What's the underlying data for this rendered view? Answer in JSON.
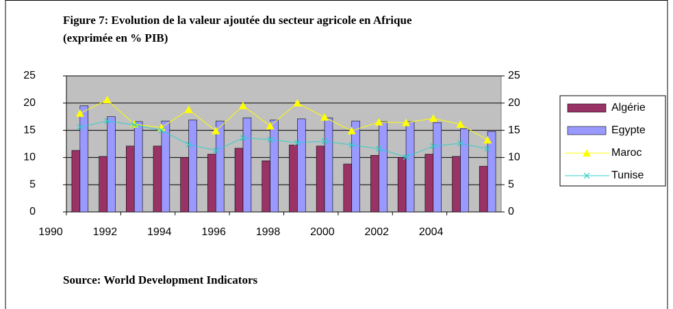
{
  "chart_data": {
    "type": "bar-line",
    "title": "Figure 7: Evolution de la valeur ajoutée du secteur agricole en Afrique (exprimée en % PIB)",
    "source": "Source: World Development Indicators",
    "x": [
      1991,
      1992,
      1993,
      1994,
      1995,
      1996,
      1997,
      1998,
      1999,
      2000,
      2001,
      2002,
      2003,
      2004,
      2005,
      2006
    ],
    "xlim": [
      1990,
      2006
    ],
    "xticks": [
      1990,
      1992,
      1994,
      1996,
      1998,
      2000,
      2002,
      2004
    ],
    "ylim": [
      0,
      25
    ],
    "yticks": [
      0,
      5,
      10,
      15,
      20,
      25
    ],
    "y2lim": [
      0,
      25
    ],
    "y2ticks": [
      0,
      5,
      10,
      15,
      20,
      25
    ],
    "grid": true,
    "legend": "right",
    "series": [
      {
        "name": "Algérie",
        "kind": "bar",
        "color": "#993366",
        "values": [
          11.3,
          10.2,
          12.1,
          12.1,
          10.0,
          10.6,
          11.7,
          9.4,
          12.3,
          12.1,
          8.8,
          10.4,
          10.0,
          10.6,
          10.2,
          8.4
        ]
      },
      {
        "name": "Egypte",
        "kind": "bar",
        "color": "#9999ff",
        "values": [
          19.5,
          17.5,
          16.6,
          16.7,
          16.9,
          16.7,
          17.3,
          16.9,
          17.1,
          17.3,
          16.7,
          16.6,
          16.6,
          16.4,
          15.3,
          14.8
        ]
      },
      {
        "name": "Maroc",
        "kind": "line",
        "marker": "triangle",
        "color": "#ffff00",
        "values": [
          18.1,
          20.6,
          16.1,
          15.5,
          18.8,
          14.9,
          19.5,
          15.8,
          20.0,
          17.4,
          14.9,
          16.5,
          16.4,
          17.2,
          16.1,
          13.2
        ]
      },
      {
        "name": "Tunise",
        "kind": "line",
        "marker": "x",
        "color": "#33cccc",
        "values": [
          15.6,
          16.7,
          16.0,
          15.0,
          12.4,
          11.3,
          13.6,
          13.3,
          12.7,
          13.0,
          12.3,
          11.6,
          10.1,
          12.1,
          12.6,
          11.6
        ]
      }
    ]
  }
}
